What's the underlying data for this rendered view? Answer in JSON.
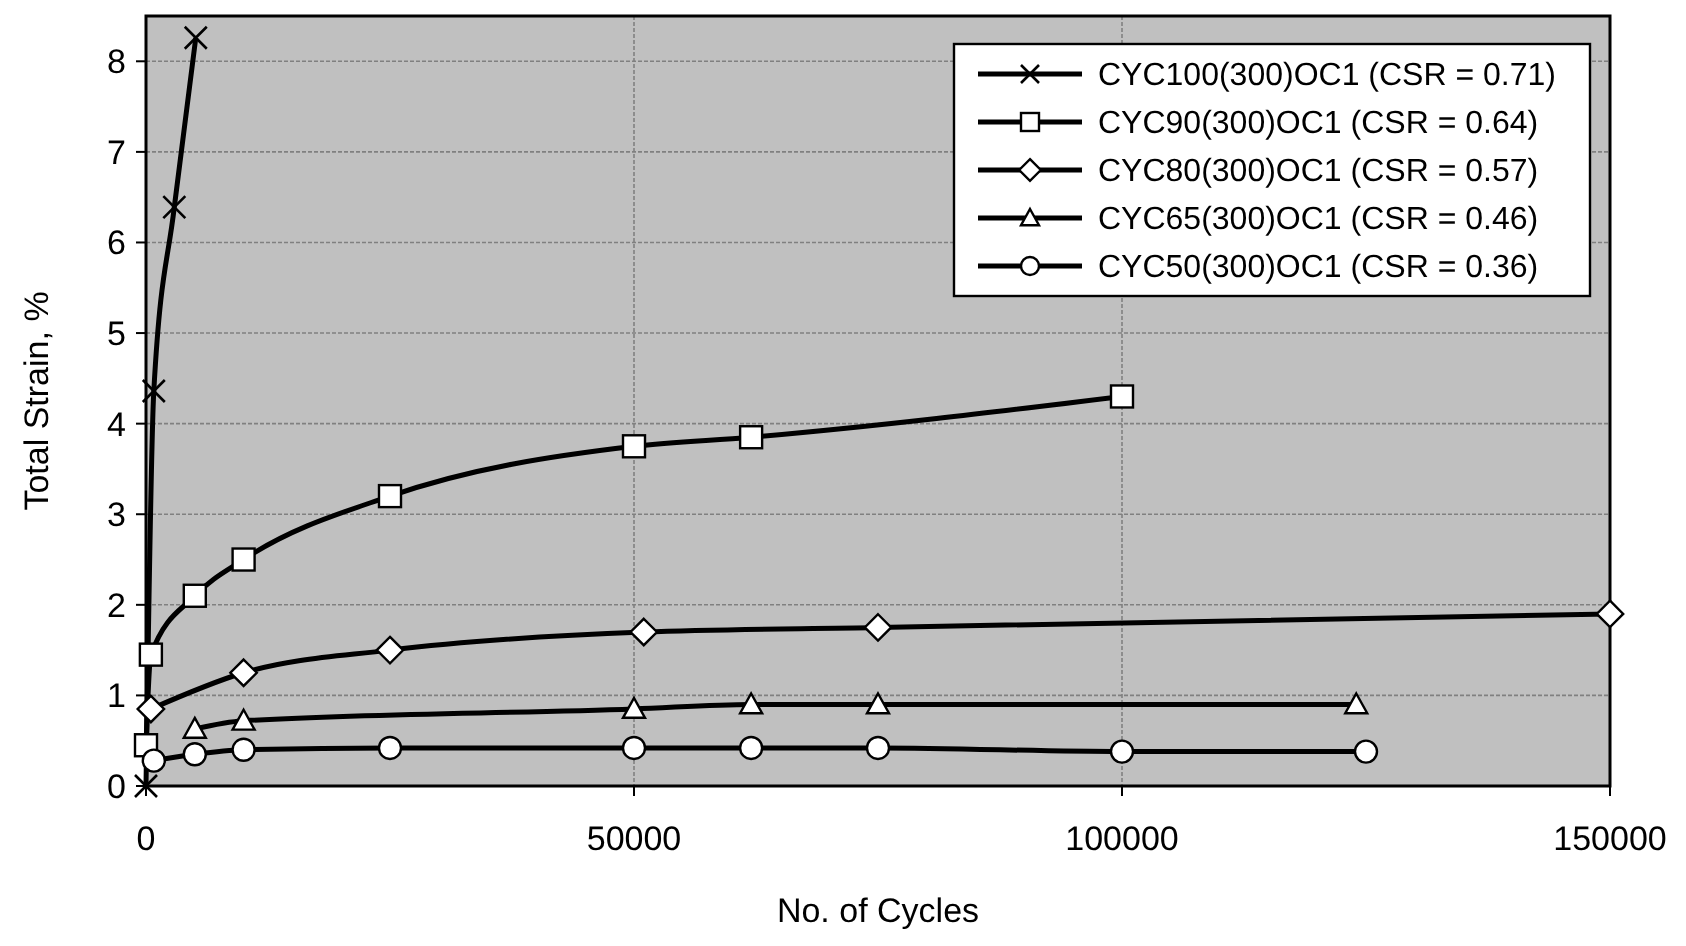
{
  "chart_data": {
    "type": "line",
    "xlabel": "No. of Cycles",
    "ylabel": "Total Strain, %",
    "xlim": [
      0,
      150000
    ],
    "ylim": [
      0,
      8.5
    ],
    "xticks": [
      0,
      50000,
      100000,
      150000
    ],
    "yticks": [
      0,
      1,
      2,
      3,
      4,
      5,
      6,
      7,
      8
    ],
    "grid": true,
    "legend": "top right",
    "line_style": "solid",
    "series": [
      {
        "name": "CYC100(300)OC1 (CSR = 0.71)",
        "color": "#000000",
        "marker": "cross",
        "x": [
          0,
          800,
          2900,
          5100
        ],
        "values": [
          0,
          4.36,
          6.39,
          8.26
        ]
      },
      {
        "name": "CYC90(300)OC1 (CSR = 0.64)",
        "color": "#000000",
        "marker": "square",
        "x": [
          0,
          500,
          5000,
          10000,
          25000,
          50000,
          62000,
          100000
        ],
        "values": [
          0.45,
          1.45,
          2.1,
          2.5,
          3.2,
          3.75,
          3.85,
          4.3
        ]
      },
      {
        "name": "CYC80(300)OC1 (CSR = 0.57)",
        "color": "#000000",
        "marker": "diamond",
        "x": [
          500,
          10000,
          25000,
          51000,
          75000,
          150000
        ],
        "values": [
          0.85,
          1.25,
          1.5,
          1.7,
          1.75,
          1.9
        ]
      },
      {
        "name": "CYC65(300)OC1 (CSR = 0.46)",
        "color": "#000000",
        "marker": "triangle",
        "x": [
          5000,
          10000,
          50000,
          62000,
          75000,
          124000
        ],
        "values": [
          0.63,
          0.72,
          0.85,
          0.9,
          0.9,
          0.9
        ]
      },
      {
        "name": "CYC50(300)OC1 (CSR = 0.36)",
        "color": "#000000",
        "marker": "circle",
        "x": [
          800,
          5000,
          10000,
          25000,
          50000,
          62000,
          75000,
          100000,
          125000
        ],
        "values": [
          0.28,
          0.35,
          0.4,
          0.42,
          0.42,
          0.42,
          0.42,
          0.38,
          0.38
        ]
      }
    ]
  }
}
